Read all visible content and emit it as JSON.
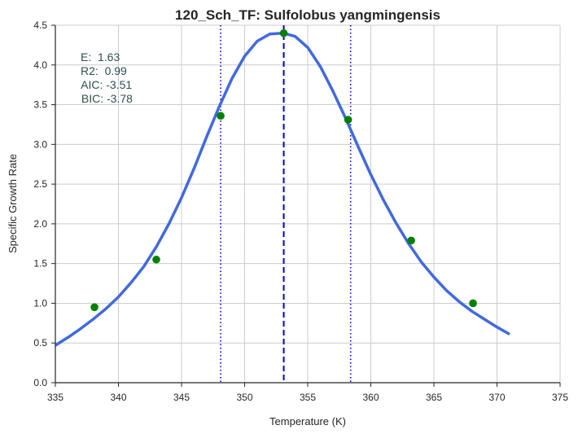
{
  "chart_data": {
    "type": "line",
    "title": "120_Sch_TF: Sulfolobus yangmingensis",
    "xlabel": "Temperature (K)",
    "ylabel": "Specific Growth Rate",
    "xlim": [
      335,
      375
    ],
    "ylim": [
      0.0,
      4.5
    ],
    "x_ticks": [
      335,
      340,
      345,
      350,
      355,
      360,
      365,
      370,
      375
    ],
    "x_tick_labels": [
      "335",
      "340",
      "345",
      "350",
      "355",
      "360",
      "365",
      "370",
      "375"
    ],
    "y_ticks": [
      0.0,
      0.5,
      1.0,
      1.5,
      2.0,
      2.5,
      3.0,
      3.5,
      4.0,
      4.5
    ],
    "y_tick_labels": [
      "0.0",
      "0.5",
      "1.0",
      "1.5",
      "2.0",
      "2.5",
      "3.0",
      "3.5",
      "4.0",
      "4.5"
    ],
    "grid": true,
    "observed_points": {
      "name": "observed",
      "color": "#008000",
      "x": [
        338.1,
        343.0,
        348.1,
        353.1,
        358.2,
        363.2,
        368.1
      ],
      "y": [
        0.95,
        1.55,
        3.36,
        4.4,
        3.31,
        1.79,
        1.0
      ]
    },
    "fitted_curve": {
      "name": "model fit",
      "color": "#4169e1",
      "peak_x": 353.1,
      "peak_y": 4.4,
      "x": [
        335,
        336,
        337,
        338,
        339,
        340,
        341,
        342,
        343,
        344,
        345,
        346,
        347,
        348,
        349,
        350,
        351,
        352,
        353,
        353.1,
        354,
        355,
        356,
        357,
        358,
        359,
        360,
        361,
        362,
        363,
        364,
        365,
        366,
        367,
        368,
        369,
        370,
        371
      ],
      "y": [
        0.47,
        0.57,
        0.68,
        0.8,
        0.93,
        1.08,
        1.26,
        1.46,
        1.71,
        2.0,
        2.33,
        2.7,
        3.1,
        3.48,
        3.83,
        4.11,
        4.3,
        4.39,
        4.4,
        4.4,
        4.36,
        4.22,
        3.98,
        3.67,
        3.33,
        2.97,
        2.62,
        2.3,
        2.01,
        1.75,
        1.52,
        1.33,
        1.16,
        1.02,
        0.9,
        0.8,
        0.7,
        0.61
      ]
    },
    "peak_line": {
      "x": 353.1,
      "style": "dashed",
      "color": "#0000cd"
    },
    "bound_lines": [
      {
        "x": 348.1,
        "style": "dotted",
        "color": "#0000ff"
      },
      {
        "x": 358.4,
        "style": "dotted",
        "color": "#0000ff"
      }
    ],
    "annotation": [
      "E:  1.63",
      "R2:  0.99",
      " AIC: -3.51",
      " BIC: -3.78"
    ]
  }
}
